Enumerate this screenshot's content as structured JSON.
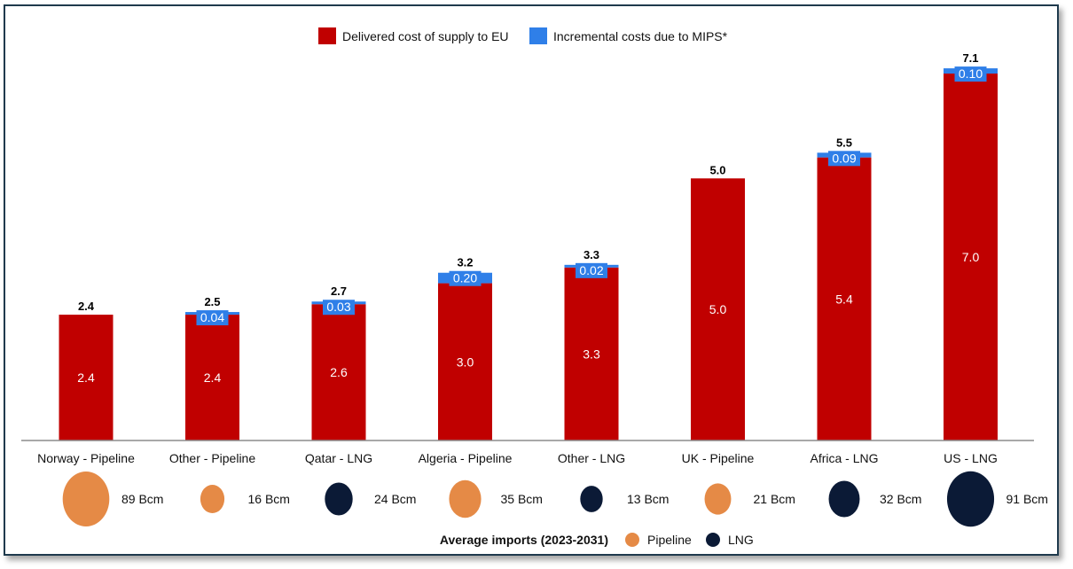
{
  "chart_data": {
    "type": "bar",
    "stacked": true,
    "title": "",
    "xlabel": "",
    "ylabel": "",
    "ylim": [
      0,
      7.3
    ],
    "grid": false,
    "legend": {
      "placement": "top-center",
      "entries": [
        {
          "name": "Delivered cost of supply to EU",
          "color": "#c00000"
        },
        {
          "name": "Incremental costs due to MIPS*",
          "color": "#2f7fe8"
        }
      ]
    },
    "categories": [
      "Norway - Pipeline",
      "Other - Pipeline",
      "Qatar - LNG",
      "Algeria - Pipeline",
      "Other - LNG",
      "UK - Pipeline",
      "Africa - LNG",
      "US - LNG"
    ],
    "series": [
      {
        "name": "Delivered cost of supply to EU",
        "color": "#c00000",
        "values": [
          2.4,
          2.4,
          2.6,
          3.0,
          3.3,
          5.0,
          5.4,
          7.0
        ],
        "labels": [
          "2.4",
          "2.4",
          "2.6",
          "3.0",
          "3.3",
          "5.0",
          "5.4",
          "7.0"
        ]
      },
      {
        "name": "Incremental costs due to MIPS*",
        "color": "#2f7fe8",
        "values": [
          0,
          0.04,
          0.03,
          0.2,
          0.02,
          0,
          0.09,
          0.1
        ],
        "labels": [
          null,
          "0.04",
          "0.03",
          "0.20",
          "0.02",
          null,
          "0.09",
          "0.10"
        ]
      }
    ],
    "totals": [
      "2.4",
      "2.5",
      "2.7",
      "3.2",
      "3.3",
      "5.0",
      "5.5",
      "7.1"
    ],
    "bubbles": {
      "title": "Average imports (2023-2031)",
      "unit": "Bcm",
      "values": [
        89,
        16,
        24,
        35,
        13,
        21,
        32,
        91
      ],
      "labels": [
        "89 Bcm",
        "16 Bcm",
        "24 Bcm",
        "35 Bcm",
        "13 Bcm",
        "21 Bcm",
        "32 Bcm",
        "91 Bcm"
      ],
      "types": [
        "Pipeline",
        "Pipeline",
        "LNG",
        "Pipeline",
        "LNG",
        "Pipeline",
        "LNG",
        "LNG"
      ],
      "legend": [
        {
          "name": "Pipeline",
          "color": "#e58a46"
        },
        {
          "name": "LNG",
          "color": "#0b1a36"
        }
      ]
    }
  }
}
